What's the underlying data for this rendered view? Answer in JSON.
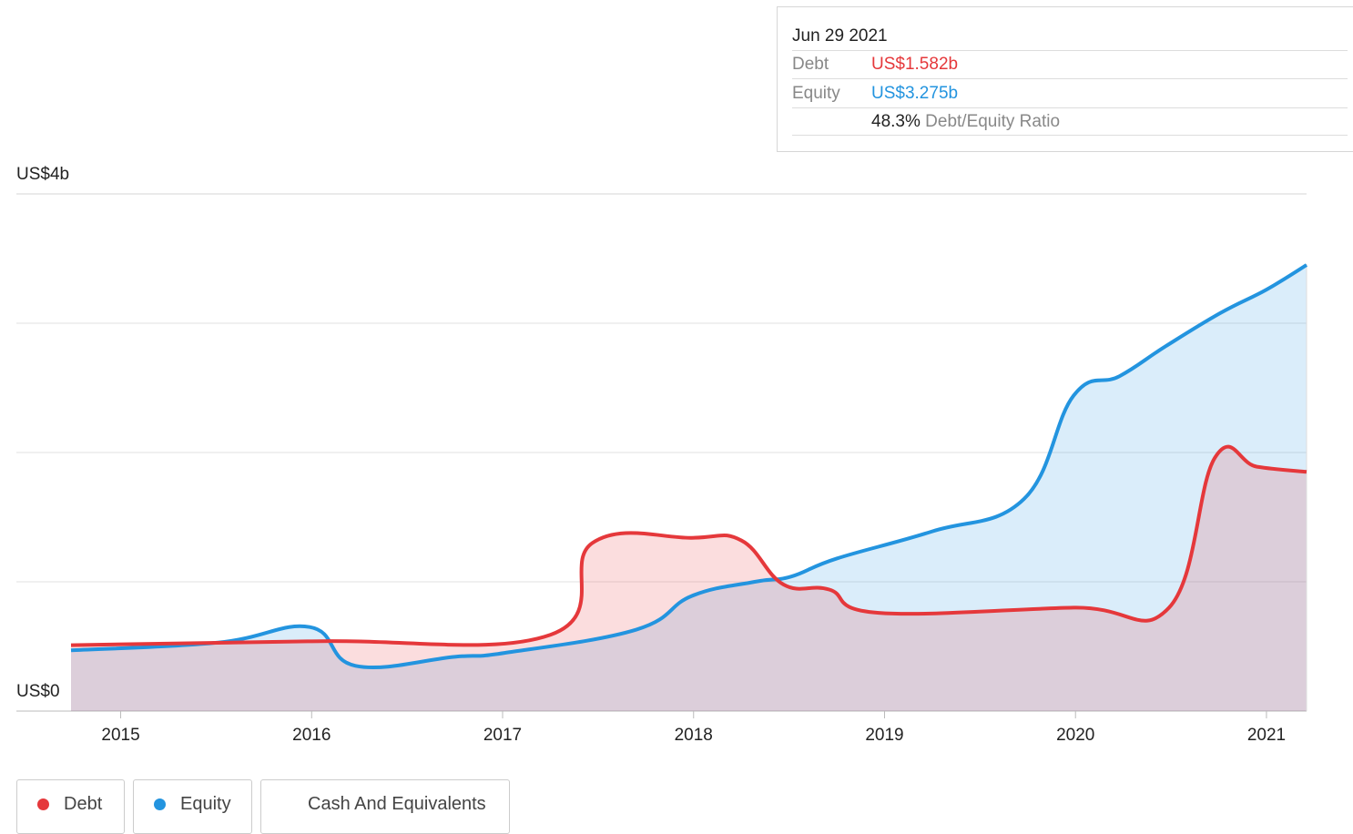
{
  "chart_data": {
    "type": "area",
    "xlim": [
      2014.74,
      2021.21
    ],
    "xticks": [
      2015,
      2016,
      2017,
      2018,
      2019,
      2020,
      2021
    ],
    "ylim": [
      0,
      4
    ],
    "yticks": [
      {
        "value": 0,
        "label": "US$0"
      },
      {
        "value": 4,
        "label": "US$4b"
      }
    ],
    "ygrid": [
      1,
      2,
      3
    ],
    "series": [
      {
        "name": "Debt",
        "color": "#e5383b",
        "x": [
          2014.74,
          2016.0,
          2017.25,
          2017.47,
          2017.99,
          2018.25,
          2018.47,
          2018.71,
          2018.97,
          2019.99,
          2020.49,
          2020.73,
          2020.95,
          2021.21
        ],
        "values": [
          0.51,
          0.54,
          0.59,
          1.3,
          1.34,
          1.32,
          0.98,
          0.94,
          0.76,
          0.8,
          0.8,
          1.96,
          1.89,
          1.85
        ]
      },
      {
        "name": "Equity",
        "color": "#2394df",
        "x": [
          2014.74,
          2015.51,
          2015.99,
          2016.23,
          2016.75,
          2017.01,
          2017.7,
          2017.99,
          2018.32,
          2018.51,
          2018.75,
          2019.25,
          2019.73,
          2019.99,
          2020.23,
          2020.47,
          2020.76,
          2021.0,
          2021.21
        ],
        "values": [
          0.47,
          0.53,
          0.65,
          0.35,
          0.42,
          0.45,
          0.63,
          0.89,
          1.0,
          1.04,
          1.18,
          1.39,
          1.64,
          2.44,
          2.59,
          2.82,
          3.08,
          3.26,
          3.45
        ]
      }
    ],
    "legend_extra": "Cash And Equivalents",
    "tooltip": {
      "date": "Jun 29 2021",
      "rows": [
        {
          "label": "Debt",
          "value": "US$1.582b"
        },
        {
          "label": "Equity",
          "value": "US$3.275b"
        }
      ],
      "ratio": "48.3%",
      "ratio_label": "Debt/Equity Ratio"
    }
  }
}
